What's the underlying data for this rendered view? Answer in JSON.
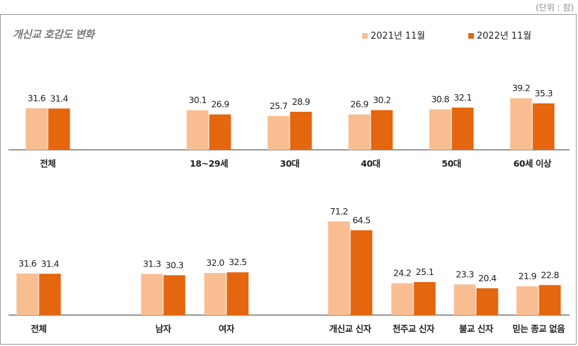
{
  "unit_label": "(단위 : 점)",
  "colors": {
    "series_2021": "#f8be92",
    "series_2022": "#e4660e",
    "axis": "#9a9a9a"
  },
  "chart_data": [
    {
      "type": "bar",
      "title": "개신교 호감도 변화",
      "legend": "top-right",
      "categories": [
        "전체",
        "18~29세",
        "30대",
        "40대",
        "50대",
        "60세 이상"
      ],
      "series": [
        {
          "name": "2021년 11월",
          "values": [
            31.6,
            30.1,
            25.7,
            26.9,
            30.8,
            39.2
          ]
        },
        {
          "name": "2022년 11월",
          "values": [
            31.4,
            26.9,
            28.9,
            30.2,
            32.1,
            35.3
          ]
        }
      ],
      "ylim": [
        0,
        100
      ]
    },
    {
      "type": "bar",
      "title": "",
      "categories": [
        "전체",
        "남자",
        "여자",
        "개신교 신자",
        "천주교 신자",
        "불교 신자",
        "믿는 종교 없음"
      ],
      "series": [
        {
          "name": "2021년 11월",
          "values": [
            31.6,
            31.3,
            32.0,
            71.2,
            24.2,
            23.3,
            21.9
          ]
        },
        {
          "name": "2022년 11월",
          "values": [
            31.4,
            30.3,
            32.5,
            64.5,
            25.1,
            20.4,
            22.8
          ]
        }
      ],
      "ylim": [
        0,
        100
      ]
    }
  ]
}
